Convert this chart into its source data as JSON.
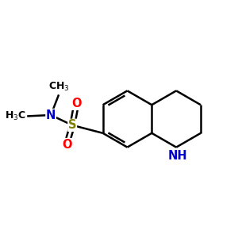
{
  "background": "#ffffff",
  "atom_colors": {
    "C": "#000000",
    "N": "#0000cc",
    "S": "#808000",
    "O": "#ff0000",
    "H": "#000000"
  },
  "bond_color": "#000000",
  "bond_width": 1.8,
  "figsize": [
    3.0,
    3.0
  ],
  "dpi": 100,
  "xlim": [
    0,
    10
  ],
  "ylim": [
    0,
    10
  ]
}
